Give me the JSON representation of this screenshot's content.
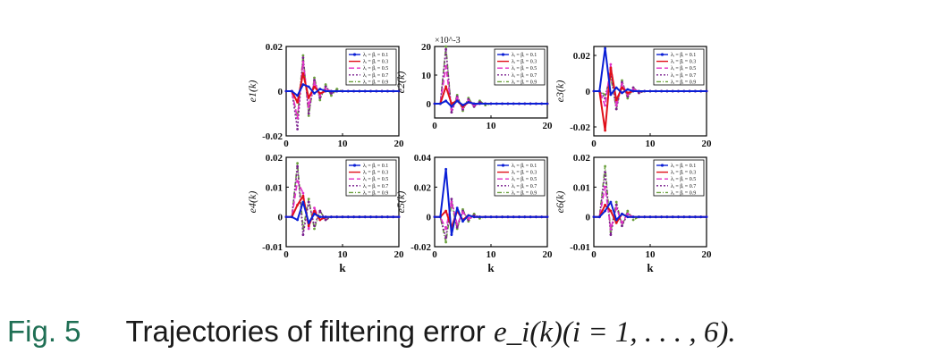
{
  "caption": {
    "label": "Fig. 5",
    "text": "Trajectories of filtering error",
    "math": "e_i(k)(i = 1, . . . , 6)."
  },
  "legend_labels": [
    "λ_i = β_i = 0.1",
    "λ_i = β_i = 0.3",
    "λ_i = β_i = 0.5",
    "λ_i = β_i = 0.7",
    "λ_i = β_i = 0.9"
  ],
  "series_colors": [
    "#0a1fd6",
    "#e0101a",
    "#e02fc6",
    "#7a1f8f",
    "#6aa03c"
  ],
  "chart_data": [
    {
      "type": "line",
      "ylabel": "e_1(k)",
      "xlabel": "",
      "xlim": [
        0,
        20
      ],
      "ylim": [
        -0.02,
        0.02
      ],
      "xticks": [
        "0",
        "10",
        "20"
      ],
      "yticks": [
        "-0.02",
        "0",
        "0.02"
      ],
      "multiplier": "",
      "legend": "top-right",
      "series": [
        {
          "name": "λ_i = β_i = 0.1",
          "values": [
            0,
            0,
            -0.002,
            0.003,
            0.002,
            -0.001,
            0.001,
            0,
            0,
            0,
            0,
            0,
            0,
            0,
            0,
            0,
            0,
            0,
            0,
            0,
            0
          ]
        },
        {
          "name": "λ_i = β_i = 0.3",
          "values": [
            0,
            0,
            -0.005,
            0.008,
            -0.003,
            0.002,
            -0.001,
            0,
            0,
            0,
            0,
            0,
            0,
            0,
            0,
            0,
            0,
            0,
            0,
            0,
            0
          ]
        },
        {
          "name": "λ_i = β_i = 0.5",
          "values": [
            0,
            0,
            -0.012,
            0.013,
            -0.007,
            0.004,
            -0.002,
            0.001,
            0,
            0,
            0,
            0,
            0,
            0,
            0,
            0,
            0,
            0,
            0,
            0,
            0
          ]
        },
        {
          "name": "λ_i = β_i = 0.7",
          "values": [
            0,
            0,
            -0.017,
            0.015,
            -0.01,
            0.005,
            -0.003,
            0.002,
            -0.001,
            0,
            0,
            0,
            0,
            0,
            0,
            0,
            0,
            0,
            0,
            0,
            0
          ]
        },
        {
          "name": "λ_i = β_i = 0.9",
          "values": [
            0,
            0,
            -0.012,
            0.016,
            -0.011,
            0.006,
            -0.004,
            0.003,
            -0.002,
            0.001,
            0,
            0,
            0,
            0,
            0,
            0,
            0,
            0,
            0,
            0,
            0
          ]
        }
      ]
    },
    {
      "type": "line",
      "ylabel": "e_2(k)",
      "xlabel": "",
      "xlim": [
        0,
        20
      ],
      "ylim": [
        -5,
        20
      ],
      "xticks": [
        "0",
        "10",
        "20"
      ],
      "yticks": [
        "0",
        "10",
        "20"
      ],
      "multiplier": "×10^-3",
      "legend": "top-right",
      "series": [
        {
          "name": "λ_i = β_i = 0.1",
          "values": [
            0,
            0,
            1,
            -1,
            1,
            -0.5,
            0.5,
            0,
            0,
            0,
            0,
            0,
            0,
            0,
            0,
            0,
            0,
            0,
            0,
            0,
            0
          ]
        },
        {
          "name": "λ_i = β_i = 0.3",
          "values": [
            0,
            0,
            6,
            0,
            1,
            -1,
            0.5,
            0,
            0,
            0,
            0,
            0,
            0,
            0,
            0,
            0,
            0,
            0,
            0,
            0,
            0
          ]
        },
        {
          "name": "λ_i = β_i = 0.5",
          "values": [
            0,
            0,
            13,
            -2,
            2,
            -1.5,
            1,
            -0.5,
            0,
            0,
            0,
            0,
            0,
            0,
            0,
            0,
            0,
            0,
            0,
            0,
            0
          ]
        },
        {
          "name": "λ_i = β_i = 0.7",
          "values": [
            0,
            0,
            19,
            -3,
            2.5,
            -2,
            1.5,
            -1,
            0.5,
            0,
            0,
            0,
            0,
            0,
            0,
            0,
            0,
            0,
            0,
            0,
            0
          ]
        },
        {
          "name": "λ_i = β_i = 0.9",
          "values": [
            0,
            0,
            20,
            -3,
            3,
            -2.5,
            2,
            -1,
            1,
            -0.5,
            0,
            0,
            0,
            0,
            0,
            0,
            0,
            0,
            0,
            0,
            0
          ]
        }
      ]
    },
    {
      "type": "line",
      "ylabel": "e_3(k)",
      "xlabel": "",
      "xlim": [
        0,
        20
      ],
      "ylim": [
        -0.025,
        0.025
      ],
      "xticks": [
        "0",
        "10",
        "20"
      ],
      "yticks": [
        "-0.02",
        "0",
        "0.02"
      ],
      "multiplier": "",
      "legend": "top-right",
      "series": [
        {
          "name": "λ_i = β_i = 0.1",
          "values": [
            0,
            0,
            0.024,
            -0.002,
            0.002,
            -0.001,
            0.001,
            0,
            0,
            0,
            0,
            0,
            0,
            0,
            0,
            0,
            0,
            0,
            0,
            0,
            0
          ]
        },
        {
          "name": "λ_i = β_i = 0.3",
          "values": [
            0,
            0,
            -0.022,
            0.013,
            -0.005,
            0.002,
            -0.001,
            0,
            0,
            0,
            0,
            0,
            0,
            0,
            0,
            0,
            0,
            0,
            0,
            0,
            0
          ]
        },
        {
          "name": "λ_i = β_i = 0.5",
          "values": [
            0,
            0,
            -0.008,
            0.015,
            -0.008,
            0.004,
            -0.002,
            0.001,
            0,
            0,
            0,
            0,
            0,
            0,
            0,
            0,
            0,
            0,
            0,
            0,
            0
          ]
        },
        {
          "name": "λ_i = β_i = 0.7",
          "values": [
            0,
            0,
            -0.004,
            0.01,
            -0.01,
            0.005,
            -0.003,
            0.002,
            -0.001,
            0,
            0,
            0,
            0,
            0,
            0,
            0,
            0,
            0,
            0,
            0,
            0
          ]
        },
        {
          "name": "λ_i = β_i = 0.9",
          "values": [
            0,
            0,
            -0.002,
            0.008,
            -0.01,
            0.006,
            -0.004,
            0.002,
            -0.001,
            0,
            0,
            0,
            0,
            0,
            0,
            0,
            0,
            0,
            0,
            0,
            0
          ]
        }
      ]
    },
    {
      "type": "line",
      "ylabel": "e_4(k)",
      "xlabel": "k",
      "xlim": [
        0,
        20
      ],
      "ylim": [
        -0.01,
        0.02
      ],
      "xticks": [
        "0",
        "10",
        "20"
      ],
      "yticks": [
        "-0.01",
        "0",
        "0.01",
        "0.02"
      ],
      "multiplier": "",
      "legend": "top-right",
      "series": [
        {
          "name": "λ_i = β_i = 0.1",
          "values": [
            0,
            0,
            -0.001,
            0.005,
            -0.002,
            0.001,
            0,
            0,
            0,
            0,
            0,
            0,
            0,
            0,
            0,
            0,
            0,
            0,
            0,
            0,
            0
          ]
        },
        {
          "name": "λ_i = β_i = 0.3",
          "values": [
            0,
            0,
            0.004,
            0.007,
            -0.003,
            0.002,
            -0.001,
            0,
            0,
            0,
            0,
            0,
            0,
            0,
            0,
            0,
            0,
            0,
            0,
            0,
            0
          ]
        },
        {
          "name": "λ_i = β_i = 0.5",
          "values": [
            0,
            0,
            0.012,
            0.008,
            -0.004,
            0.003,
            -0.001,
            0,
            0,
            0,
            0,
            0,
            0,
            0,
            0,
            0,
            0,
            0,
            0,
            0,
            0
          ]
        },
        {
          "name": "λ_i = β_i = 0.7",
          "values": [
            0,
            0,
            0.017,
            -0.006,
            0.005,
            -0.003,
            0.002,
            -0.001,
            0,
            0,
            0,
            0,
            0,
            0,
            0,
            0,
            0,
            0,
            0,
            0,
            0
          ]
        },
        {
          "name": "λ_i = β_i = 0.9",
          "values": [
            0,
            0,
            0.018,
            -0.004,
            0.006,
            -0.004,
            0.002,
            -0.001,
            0,
            0,
            0,
            0,
            0,
            0,
            0,
            0,
            0,
            0,
            0,
            0,
            0
          ]
        }
      ]
    },
    {
      "type": "line",
      "ylabel": "e_5(k)",
      "xlabel": "k",
      "xlim": [
        0,
        20
      ],
      "ylim": [
        -0.02,
        0.04
      ],
      "xticks": [
        "0",
        "10",
        "20"
      ],
      "yticks": [
        "-0.02",
        "0",
        "0.02",
        "0.04"
      ],
      "multiplier": "",
      "legend": "top-right",
      "series": [
        {
          "name": "λ_i = β_i = 0.1",
          "values": [
            0,
            0,
            0.032,
            -0.012,
            0.006,
            -0.003,
            0.001,
            0,
            0,
            0,
            0,
            0,
            0,
            0,
            0,
            0,
            0,
            0,
            0,
            0,
            0
          ]
        },
        {
          "name": "λ_i = β_i = 0.3",
          "values": [
            0,
            0,
            0.004,
            -0.007,
            0.004,
            -0.002,
            0.001,
            0,
            0,
            0,
            0,
            0,
            0,
            0,
            0,
            0,
            0,
            0,
            0,
            0,
            0
          ]
        },
        {
          "name": "λ_i = β_i = 0.5",
          "values": [
            0,
            0,
            -0.008,
            0.01,
            -0.005,
            0.003,
            -0.001,
            0,
            0,
            0,
            0,
            0,
            0,
            0,
            0,
            0,
            0,
            0,
            0,
            0,
            0
          ]
        },
        {
          "name": "λ_i = β_i = 0.7",
          "values": [
            0,
            0,
            -0.014,
            0.012,
            -0.007,
            0.004,
            -0.002,
            0.001,
            0,
            0,
            0,
            0,
            0,
            0,
            0,
            0,
            0,
            0,
            0,
            0,
            0
          ]
        },
        {
          "name": "λ_i = β_i = 0.9",
          "values": [
            0,
            0,
            -0.017,
            0.009,
            -0.008,
            0.005,
            -0.003,
            0.002,
            -0.001,
            0,
            0,
            0,
            0,
            0,
            0,
            0,
            0,
            0,
            0,
            0,
            0
          ]
        }
      ]
    },
    {
      "type": "line",
      "ylabel": "e_6(k)",
      "xlabel": "k",
      "xlim": [
        0,
        20
      ],
      "ylim": [
        -0.01,
        0.02
      ],
      "xticks": [
        "0",
        "10",
        "20"
      ],
      "yticks": [
        "-0.01",
        "0",
        "0.01",
        "0.02"
      ],
      "multiplier": "",
      "legend": "top-right",
      "series": [
        {
          "name": "λ_i = β_i = 0.1",
          "values": [
            0,
            0,
            0.002,
            0.005,
            -0.001,
            0.001,
            0,
            0,
            0,
            0,
            0,
            0,
            0,
            0,
            0,
            0,
            0,
            0,
            0,
            0,
            0
          ]
        },
        {
          "name": "λ_i = β_i = 0.3",
          "values": [
            0,
            0,
            0.004,
            0.002,
            -0.002,
            0.001,
            0,
            0,
            0,
            0,
            0,
            0,
            0,
            0,
            0,
            0,
            0,
            0,
            0,
            0,
            0
          ]
        },
        {
          "name": "λ_i = β_i = 0.5",
          "values": [
            0,
            0,
            0.01,
            -0.004,
            0.003,
            -0.002,
            0.001,
            0,
            0,
            0,
            0,
            0,
            0,
            0,
            0,
            0,
            0,
            0,
            0,
            0,
            0
          ]
        },
        {
          "name": "λ_i = β_i = 0.7",
          "values": [
            0,
            0,
            0.015,
            -0.006,
            0.004,
            -0.003,
            0.001,
            0,
            0,
            0,
            0,
            0,
            0,
            0,
            0,
            0,
            0,
            0,
            0,
            0,
            0
          ]
        },
        {
          "name": "λ_i = β_i = 0.9",
          "values": [
            0,
            0,
            0.017,
            -0.005,
            0.005,
            -0.003,
            0.002,
            -0.001,
            0,
            0,
            0,
            0,
            0,
            0,
            0,
            0,
            0,
            0,
            0,
            0,
            0
          ]
        }
      ]
    }
  ]
}
